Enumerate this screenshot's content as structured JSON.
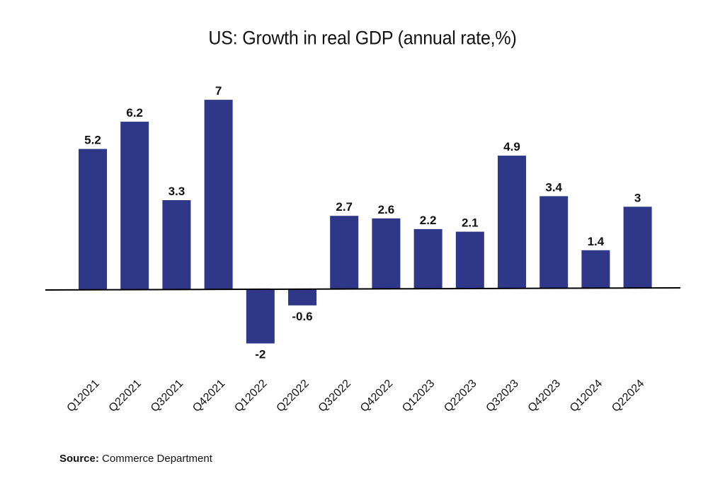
{
  "chart_data": {
    "type": "bar",
    "title": "US: Growth in real GDP (annual rate,%)",
    "xlabel": "",
    "ylabel": "",
    "categories": [
      "Q12021",
      "Q22021",
      "Q32021",
      "Q42021",
      "Q12022",
      "Q22022",
      "Q32022",
      "Q42022",
      "Q12023",
      "Q22023",
      "Q32023",
      "Q42023",
      "Q12024",
      "Q22024"
    ],
    "values": [
      5.2,
      6.2,
      3.3,
      7,
      -2,
      -0.6,
      2.7,
      2.6,
      2.2,
      2.1,
      4.9,
      3.4,
      1.4,
      3
    ],
    "data_labels": [
      "5.2",
      "6.2",
      "3.3",
      "7",
      "-2",
      "-0.6",
      "2.7",
      "2.6",
      "2.2",
      "2.1",
      "4.9",
      "3.4",
      "1.4",
      "3"
    ],
    "ylim": [
      -2.5,
      7.5
    ],
    "grid": false,
    "legend": "none",
    "bar_color": "#2e3788",
    "tick_label_rotation": "45° up-right"
  },
  "source": {
    "label": "Source:",
    "text": " Commerce Department"
  }
}
